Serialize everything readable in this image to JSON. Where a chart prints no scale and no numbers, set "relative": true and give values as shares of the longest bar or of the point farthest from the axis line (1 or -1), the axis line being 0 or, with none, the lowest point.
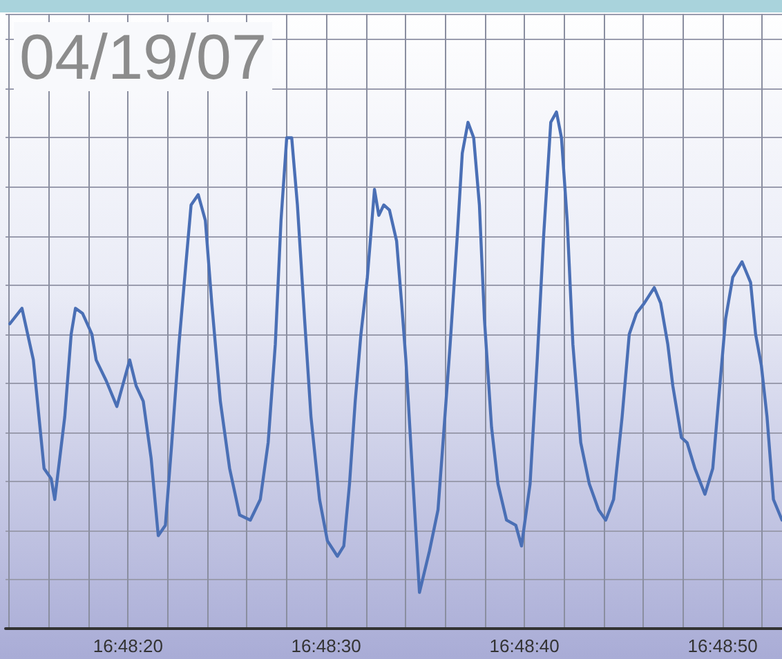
{
  "chart_data": {
    "type": "line",
    "title": "04/19/07",
    "relative": true,
    "grid": true,
    "marker": "none",
    "line_style": "solid",
    "xlim": [
      16.80384,
      16.81472
    ],
    "xticks": [
      {
        "value": 16.803889,
        "label": null
      },
      {
        "value": 16.804444,
        "label": null
      },
      {
        "value": 16.805,
        "label": null
      },
      {
        "value": 16.805556,
        "label": "16:48:20"
      },
      {
        "value": 16.806111,
        "label": null
      },
      {
        "value": 16.806667,
        "label": null
      },
      {
        "value": 16.807222,
        "label": null
      },
      {
        "value": 16.807778,
        "label": null
      },
      {
        "value": 16.808333,
        "label": "16:48:30"
      },
      {
        "value": 16.808889,
        "label": null
      },
      {
        "value": 16.809444,
        "label": null
      },
      {
        "value": 16.81,
        "label": null
      },
      {
        "value": 16.810556,
        "label": null
      },
      {
        "value": 16.811111,
        "label": "16:48:40"
      },
      {
        "value": 16.811667,
        "label": null
      },
      {
        "value": 16.812222,
        "label": null
      },
      {
        "value": 16.812778,
        "label": null
      },
      {
        "value": 16.813333,
        "label": null
      },
      {
        "value": 16.813889,
        "label": "16:48:50"
      },
      {
        "value": 16.814444,
        "label": null
      }
    ],
    "series": [
      {
        "color": "#4a6fb5",
        "x": [
          16.8039,
          16.80407,
          16.80423,
          16.80438,
          16.80448,
          16.80453,
          16.80467,
          16.80476,
          16.80482,
          16.80492,
          16.80505,
          16.80511,
          16.80525,
          16.8054,
          16.8055,
          16.80558,
          16.80567,
          16.80577,
          16.80588,
          16.80598,
          16.80608,
          16.80617,
          16.80627,
          16.80637,
          16.80644,
          16.80654,
          16.80664,
          16.80673,
          16.80685,
          16.80698,
          16.80712,
          16.80727,
          16.80741,
          16.80752,
          16.80762,
          16.8077,
          16.80778,
          16.80785,
          16.80793,
          16.80803,
          16.80812,
          16.80824,
          16.80835,
          16.80849,
          16.80858,
          16.80866,
          16.80874,
          16.80882,
          16.80891,
          16.80901,
          16.80907,
          16.80914,
          16.80922,
          16.80932,
          16.80939,
          16.80945,
          16.80953,
          16.80964,
          16.80978,
          16.8099,
          16.80997,
          16.81007,
          16.81017,
          16.81024,
          16.81032,
          16.8104,
          16.81048,
          16.81055,
          16.81065,
          16.81074,
          16.81086,
          16.81099,
          16.81107,
          16.81119,
          16.81129,
          16.81138,
          16.81148,
          16.81156,
          16.81163,
          16.81171,
          16.81179,
          16.8119,
          16.81202,
          16.81215,
          16.81225,
          16.81236,
          16.81248,
          16.81258,
          16.81268,
          16.81279,
          16.81293,
          16.81302,
          16.81312,
          16.81319,
          16.81331,
          16.81339,
          16.8135,
          16.81364,
          16.81375,
          16.81383,
          16.81393,
          16.81403,
          16.81416,
          16.81428,
          16.81435,
          16.81443,
          16.81451,
          16.8146,
          16.81472
        ],
        "values": [
          0.59,
          0.62,
          0.52,
          0.31,
          0.29,
          0.25,
          0.41,
          0.57,
          0.62,
          0.61,
          0.57,
          0.52,
          0.48,
          0.43,
          0.48,
          0.52,
          0.47,
          0.44,
          0.33,
          0.18,
          0.2,
          0.36,
          0.55,
          0.71,
          0.82,
          0.84,
          0.79,
          0.63,
          0.44,
          0.31,
          0.22,
          0.21,
          0.25,
          0.36,
          0.55,
          0.79,
          0.95,
          0.95,
          0.82,
          0.6,
          0.41,
          0.25,
          0.17,
          0.14,
          0.16,
          0.28,
          0.44,
          0.57,
          0.68,
          0.85,
          0.8,
          0.82,
          0.81,
          0.75,
          0.63,
          0.52,
          0.33,
          0.07,
          0.15,
          0.23,
          0.36,
          0.55,
          0.76,
          0.92,
          0.98,
          0.95,
          0.82,
          0.6,
          0.39,
          0.28,
          0.21,
          0.2,
          0.16,
          0.28,
          0.52,
          0.76,
          0.98,
          1,
          0.95,
          0.79,
          0.55,
          0.36,
          0.28,
          0.23,
          0.21,
          0.25,
          0.41,
          0.57,
          0.61,
          0.63,
          0.66,
          0.63,
          0.55,
          0.47,
          0.37,
          0.36,
          0.31,
          0.26,
          0.31,
          0.44,
          0.6,
          0.68,
          0.71,
          0.67,
          0.57,
          0.51,
          0.41,
          0.25,
          0.21
        ]
      }
    ]
  }
}
